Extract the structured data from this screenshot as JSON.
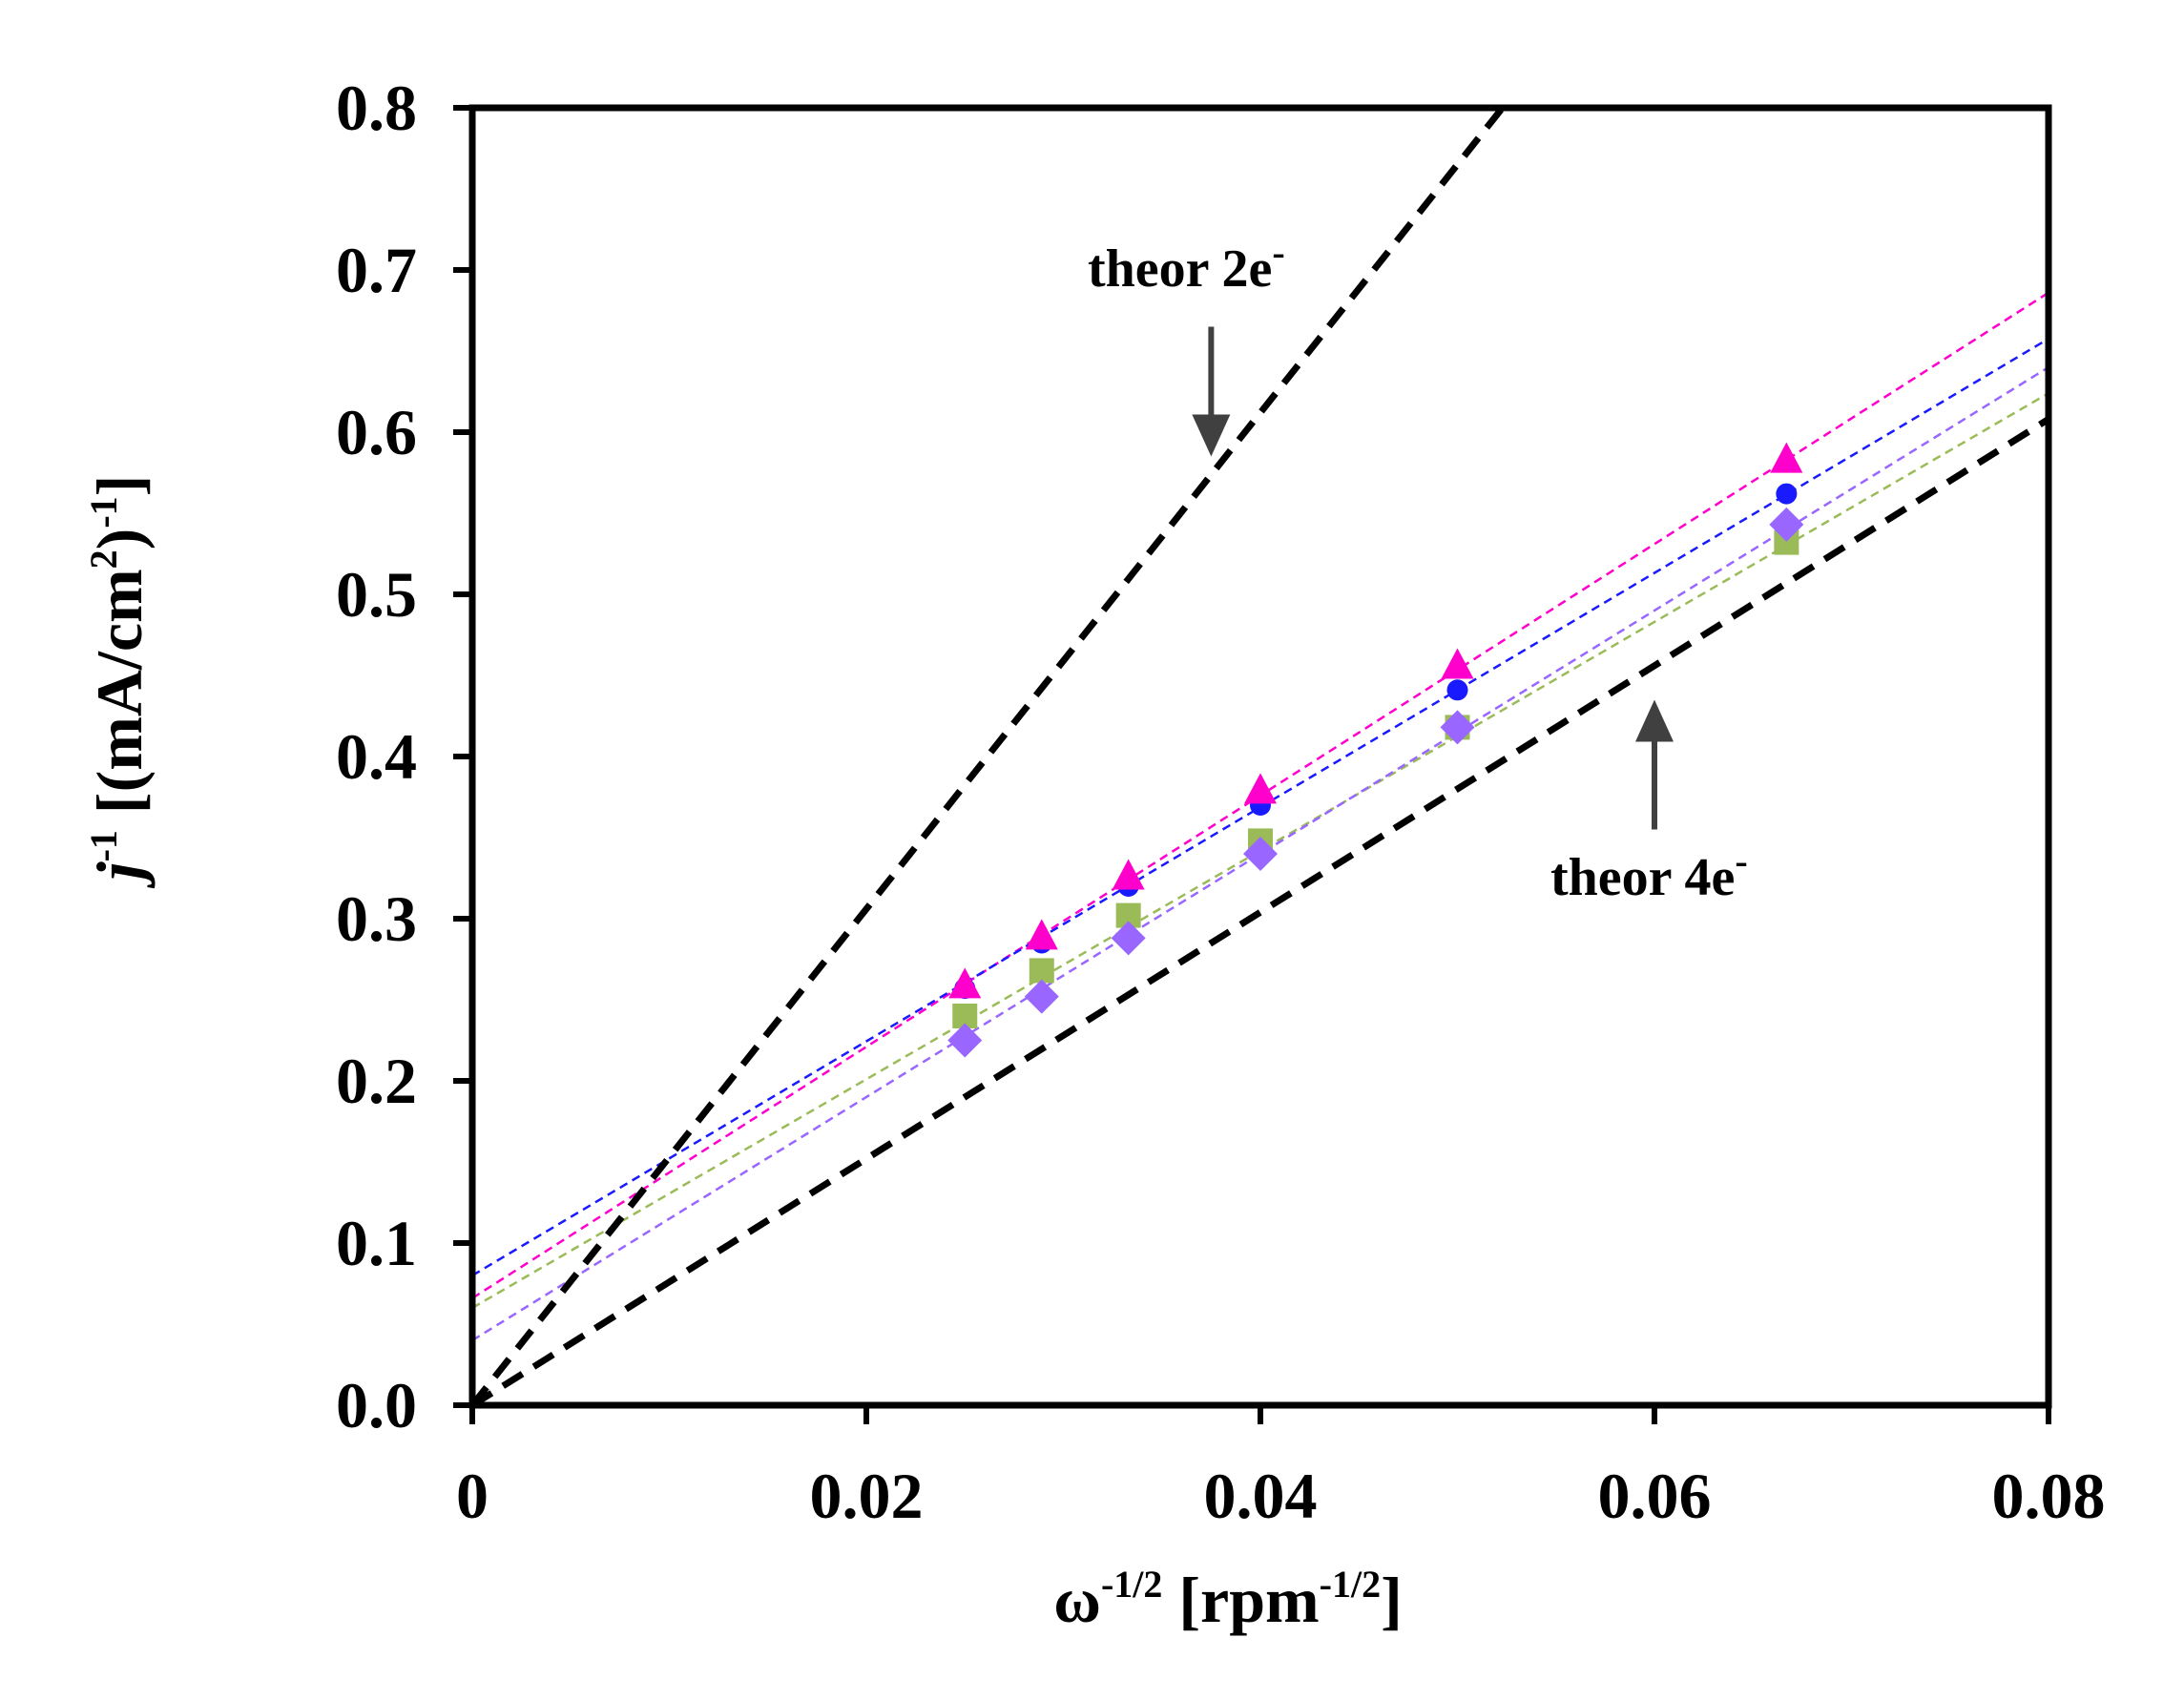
{
  "chart_data": {
    "type": "scatter",
    "title": "",
    "xlabel": {
      "base": "ω",
      "sup1": "-1/2",
      "mid": " [rpm",
      "sup2": "-1/2",
      "end": "]"
    },
    "ylabel": {
      "j": "j",
      "sup1": "-1",
      "mid": " [(mA/cm",
      "sup2": "2",
      "mid2": ")",
      "sup3": "-1",
      "end": "]"
    },
    "xlim": [
      0,
      0.08
    ],
    "ylim": [
      0,
      0.8
    ],
    "xticks": [
      0,
      0.02,
      0.04,
      0.06,
      0.08
    ],
    "xtick_labels": [
      "0",
      "0.02",
      "0.04",
      "0.06",
      "0.08"
    ],
    "yticks": [
      0,
      0.1,
      0.2,
      0.3,
      0.4,
      0.5,
      0.6,
      0.7,
      0.8
    ],
    "ytick_labels": [
      "0.0",
      "0.1",
      "0.2",
      "0.3",
      "0.4",
      "0.5",
      "0.6",
      "0.7",
      "0.8"
    ],
    "grid": false,
    "x": [
      0.025,
      0.0289,
      0.0333,
      0.04,
      0.05,
      0.0667
    ],
    "series": [
      {
        "name": "triangle",
        "marker": "triangle",
        "color": "#ff00cc",
        "values": [
          0.258,
          0.288,
          0.325,
          0.378,
          0.455,
          0.582
        ],
        "fit": {
          "intercept": 0.066,
          "slope": 7.75
        }
      },
      {
        "name": "circle",
        "marker": "circle",
        "color": "#1a1aff",
        "values": [
          0.257,
          0.285,
          0.32,
          0.37,
          0.441,
          0.562
        ],
        "fit": {
          "intercept": 0.08,
          "slope": 7.22
        }
      },
      {
        "name": "square",
        "marker": "square",
        "color": "#9bbb59",
        "values": [
          0.24,
          0.268,
          0.302,
          0.348,
          0.418,
          0.532
        ],
        "fit": {
          "intercept": 0.06,
          "slope": 7.05
        }
      },
      {
        "name": "diamond",
        "marker": "diamond",
        "color": "#9966ff",
        "values": [
          0.225,
          0.252,
          0.288,
          0.34,
          0.418,
          0.543
        ],
        "fit": {
          "intercept": 0.04,
          "slope": 7.5
        }
      }
    ],
    "reference_lines": [
      {
        "name": "theor 2e-",
        "color": "#000000",
        "intercept": 0.0,
        "slope": 15.3
      },
      {
        "name": "theor 4e-",
        "color": "#000000",
        "intercept": 0.0,
        "slope": 7.6
      }
    ],
    "annotations": [
      {
        "text": "theor 2e",
        "sup": "-",
        "points_to": "theor 2e-",
        "arrow_tip": [
          0.0375,
          0.585
        ],
        "arrow_tail": [
          0.0375,
          0.665
        ]
      },
      {
        "text": "theor 4e",
        "sup": "-",
        "points_to": "theor 4e-",
        "arrow_tip": [
          0.06,
          0.435
        ],
        "arrow_tail": [
          0.06,
          0.355
        ]
      }
    ]
  }
}
